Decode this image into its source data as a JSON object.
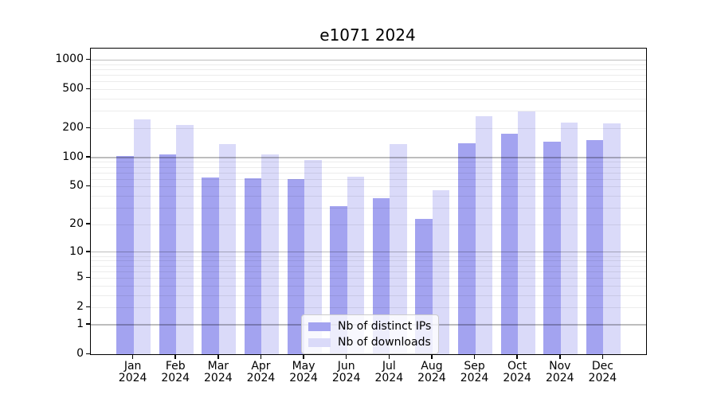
{
  "figure": {
    "title": "e1071 2024",
    "background": "#ffffff"
  },
  "chart_data": {
    "type": "bar",
    "title": "e1071 2024",
    "categories": [
      "Jan 2024",
      "Feb 2024",
      "Mar 2024",
      "Apr 2024",
      "May 2024",
      "Jun 2024",
      "Jul 2024",
      "Aug 2024",
      "Sep 2024",
      "Oct 2024",
      "Nov 2024",
      "Dec 2024"
    ],
    "series": [
      {
        "name": "Nb of distinct IPs",
        "color": "#a3a3f0",
        "values": [
          104,
          107,
          62,
          61,
          60,
          31,
          38,
          23,
          140,
          174,
          146,
          152
        ]
      },
      {
        "name": "Nb of downloads",
        "color": "#dadaf9",
        "values": [
          245,
          216,
          138,
          107,
          95,
          63,
          138,
          46,
          265,
          295,
          226,
          223
        ]
      }
    ],
    "xlabel": "",
    "ylabel": "",
    "y_axis": {
      "scale": "log1p",
      "tick_values": [
        0,
        1,
        2,
        5,
        10,
        20,
        50,
        100,
        200,
        500,
        1000
      ],
      "tick_labels": [
        "0",
        "1",
        "2",
        "5",
        "10",
        "20",
        "50",
        "100",
        "200",
        "500",
        "1000"
      ],
      "major_gridlines": [
        1,
        10,
        100,
        1000
      ],
      "minor_gridline_decades": [
        1,
        10,
        100
      ],
      "ylim": [
        0,
        1300
      ]
    },
    "grid": true,
    "legend_position": "lower-center",
    "colors": {
      "spine": "#000000",
      "major_grid": "rgba(0,0,0,0.26)",
      "minor_grid": "rgba(0,0,0,0.075)",
      "text": "#000000"
    }
  }
}
